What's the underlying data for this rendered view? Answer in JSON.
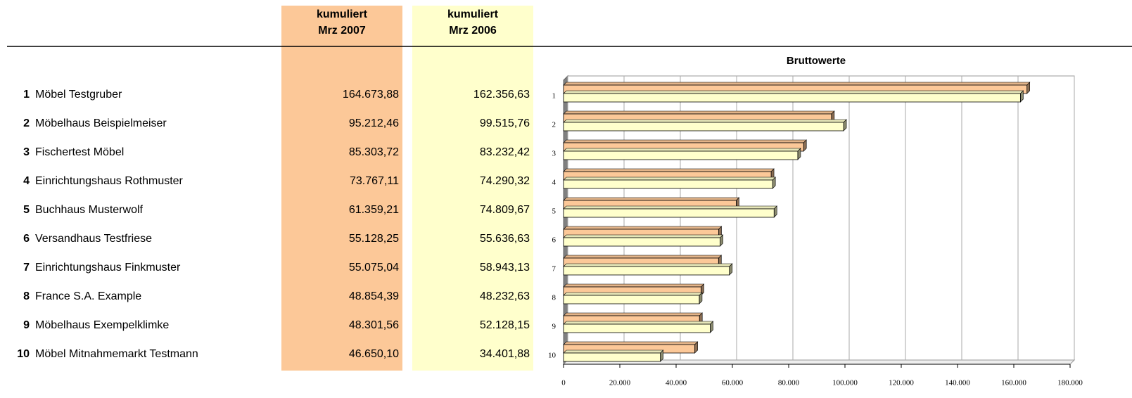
{
  "table": {
    "headers": [
      [
        "kumuliert",
        "Mrz 2007"
      ],
      [
        "kumuliert",
        "Mrz 2006"
      ]
    ],
    "names": [
      "Möbel Testgruber",
      "Möbelhaus Beispielmeiser",
      "Fischertest Möbel",
      "Einrichtungshaus Rothmuster",
      "Buchhaus Musterwolf",
      "Versandhaus Testfriese",
      "Einrichtungshaus Finkmuster",
      "France S.A. Example",
      "Möbelhaus Exempelklimke",
      "Möbel Mitnahmemarkt Testmann"
    ]
  },
  "chart_data": {
    "type": "bar",
    "orientation": "horizontal",
    "title": "Bruttowerte",
    "categories": [
      "1",
      "2",
      "3",
      "4",
      "5",
      "6",
      "7",
      "8",
      "9",
      "10"
    ],
    "series": [
      {
        "color": "#fcc898",
        "values": [
          164673.88,
          95212.46,
          85303.72,
          73767.11,
          61359.21,
          55128.25,
          55075.04,
          48854.39,
          48301.56,
          46650.1
        ],
        "value_labels": [
          "164.673,88",
          "95.212,46",
          "85.303,72",
          "73.767,11",
          "61.359,21",
          "55.128,25",
          "55.075,04",
          "48.854,39",
          "48.301,56",
          "46.650,10"
        ]
      },
      {
        "color": "#ffffcc",
        "values": [
          162356.63,
          99515.76,
          83232.42,
          74290.32,
          74809.67,
          55636.63,
          58943.13,
          48232.63,
          52128.15,
          34401.88
        ],
        "value_labels": [
          "162.356,63",
          "99.515,76",
          "83.232,42",
          "74.290,32",
          "74.809,67",
          "55.636,63",
          "58.943,13",
          "48.232,63",
          "52.128,15",
          "34.401,88"
        ]
      }
    ],
    "xlim": [
      0,
      180000
    ],
    "xticks": [
      0,
      {
        "value": 20000,
        "label": "20.000"
      },
      {
        "value": 40000,
        "label": "40.000"
      },
      {
        "value": 60000,
        "label": "60.000"
      },
      {
        "value": 80000,
        "label": "80.000"
      },
      {
        "value": 100000,
        "label": "100.000"
      },
      {
        "value": 120000,
        "label": "120.000"
      },
      {
        "value": 140000,
        "label": "140.000"
      },
      {
        "value": 160000,
        "label": "160.000"
      },
      {
        "value": 180000,
        "label": "180.000"
      }
    ],
    "grid": true
  }
}
